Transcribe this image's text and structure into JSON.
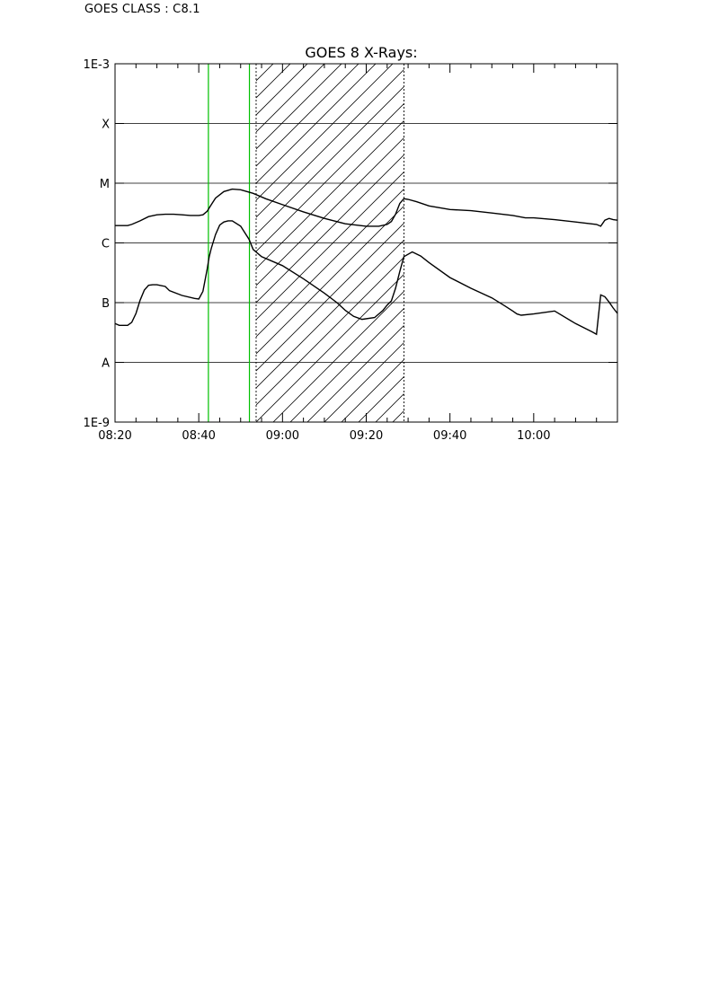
{
  "header": {
    "goes_class": "GOES CLASS : C8.1"
  },
  "chart_data": {
    "type": "line",
    "title": "GOES 8 X-Rays:",
    "xlabel": "",
    "ylabel": "",
    "y_scale": "log",
    "ylim": [
      "1E-9",
      "1E-3"
    ],
    "y_ticks": [
      "1E-9",
      "A",
      "B",
      "C",
      "M",
      "X",
      "1E-3"
    ],
    "x_range_minutes": [
      500,
      620
    ],
    "x_ticks": [
      {
        "label": "08:20",
        "min": 500
      },
      {
        "label": "08:40",
        "min": 520
      },
      {
        "label": "09:00",
        "min": 540
      },
      {
        "label": "09:20",
        "min": 560
      },
      {
        "label": "09:40",
        "min": 580
      },
      {
        "label": "10:00",
        "min": 600
      }
    ],
    "grid": true,
    "markers": {
      "green_lines_min": [
        522.3,
        532.1
      ],
      "dotted_lines_min": [
        533.7,
        569.0
      ],
      "hatched_interval_min": [
        533.7,
        569.0
      ]
    },
    "series": [
      {
        "band": "long",
        "x": [
          500,
          503,
          504,
          506,
          508,
          510,
          512,
          514,
          516,
          518,
          520,
          521,
          522,
          523,
          524,
          526,
          528,
          530,
          533,
          536,
          540,
          545,
          550,
          555,
          560,
          563,
          565,
          566,
          567,
          568,
          569,
          570,
          572,
          575,
          580,
          585,
          590,
          595,
          598,
          600,
          605,
          610,
          615,
          616,
          617,
          618,
          619,
          620
        ],
        "y": [
          -5.71,
          -5.71,
          -5.69,
          -5.63,
          -5.56,
          -5.53,
          -5.52,
          -5.52,
          -5.53,
          -5.54,
          -5.54,
          -5.53,
          -5.47,
          -5.36,
          -5.25,
          -5.14,
          -5.1,
          -5.11,
          -5.17,
          -5.26,
          -5.36,
          -5.48,
          -5.59,
          -5.68,
          -5.72,
          -5.72,
          -5.69,
          -5.64,
          -5.52,
          -5.34,
          -5.26,
          -5.27,
          -5.31,
          -5.38,
          -5.44,
          -5.46,
          -5.5,
          -5.54,
          -5.58,
          -5.58,
          -5.61,
          -5.65,
          -5.69,
          -5.72,
          -5.62,
          -5.59,
          -5.61,
          -5.62
        ]
      },
      {
        "band": "short",
        "x": [
          500,
          501,
          503,
          504,
          505,
          506,
          507,
          508,
          509,
          510,
          512,
          513,
          516,
          519,
          520,
          521,
          522,
          522.5,
          523,
          524,
          525,
          526,
          527,
          528,
          530,
          532,
          533,
          535,
          540,
          545,
          550,
          553,
          555,
          557,
          559,
          562,
          564,
          565,
          566,
          567,
          568,
          569,
          571,
          573,
          575,
          580,
          585,
          590,
          593,
          595,
          596,
          597,
          600,
          605,
          610,
          614,
          615,
          616,
          617,
          618,
          619,
          620
        ],
        "y": [
          -7.35,
          -7.38,
          -7.38,
          -7.33,
          -7.18,
          -6.96,
          -6.79,
          -6.71,
          -6.7,
          -6.7,
          -6.73,
          -6.8,
          -6.88,
          -6.93,
          -6.94,
          -6.81,
          -6.44,
          -6.23,
          -6.09,
          -5.86,
          -5.7,
          -5.65,
          -5.63,
          -5.63,
          -5.72,
          -5.94,
          -6.11,
          -6.23,
          -6.38,
          -6.6,
          -6.84,
          -7.0,
          -7.13,
          -7.23,
          -7.28,
          -7.25,
          -7.13,
          -7.04,
          -6.97,
          -6.76,
          -6.48,
          -6.23,
          -6.15,
          -6.22,
          -6.33,
          -6.58,
          -6.76,
          -6.92,
          -7.05,
          -7.14,
          -7.19,
          -7.21,
          -7.19,
          -7.14,
          -7.35,
          -7.49,
          -7.53,
          -6.87,
          -6.9,
          -6.99,
          -7.09,
          -7.18
        ]
      }
    ]
  }
}
